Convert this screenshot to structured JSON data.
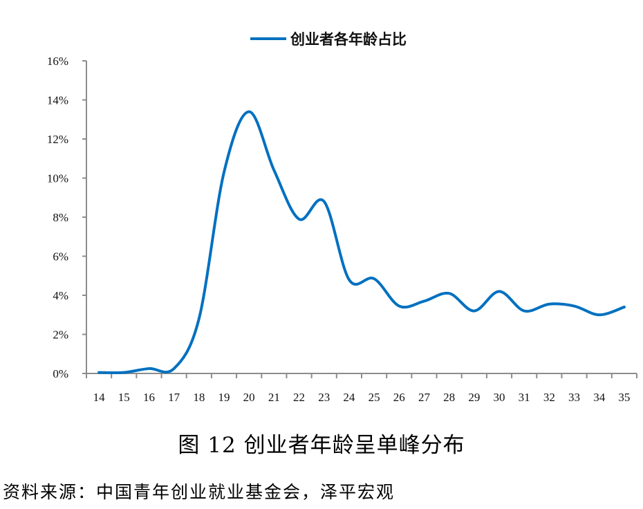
{
  "chart_data": {
    "type": "line",
    "title": "",
    "legend": [
      "创业者各年龄占比"
    ],
    "legend_position": "top",
    "xlabel": "",
    "ylabel": "",
    "categories": [
      "14",
      "15",
      "16",
      "17",
      "18",
      "19",
      "20",
      "21",
      "22",
      "23",
      "24",
      "25",
      "26",
      "27",
      "28",
      "29",
      "30",
      "31",
      "32",
      "33",
      "34",
      "35"
    ],
    "series": [
      {
        "name": "创业者各年龄占比",
        "color": "#0070C0",
        "smooth": true,
        "values": [
          0.05,
          0.05,
          0.25,
          0.25,
          2.8,
          10.3,
          13.4,
          10.4,
          7.9,
          8.8,
          4.8,
          4.85,
          3.45,
          3.7,
          4.1,
          3.2,
          4.2,
          3.2,
          3.55,
          3.45,
          3.0,
          3.4
        ]
      }
    ],
    "ylim": [
      0,
      16
    ],
    "yticks": [
      0,
      2,
      4,
      6,
      8,
      10,
      12,
      14,
      16
    ],
    "ytick_labels": [
      "0%",
      "2%",
      "4%",
      "6%",
      "8%",
      "10%",
      "12%",
      "14%",
      "16%"
    ],
    "grid": false,
    "value_unit": "%"
  },
  "caption": "图 12  创业者年龄呈单峰分布",
  "source": "资料来源：中国青年创业就业基金会，泽平宏观",
  "colors": {
    "line": "#0070C0",
    "axis": "#8c8c8c"
  }
}
